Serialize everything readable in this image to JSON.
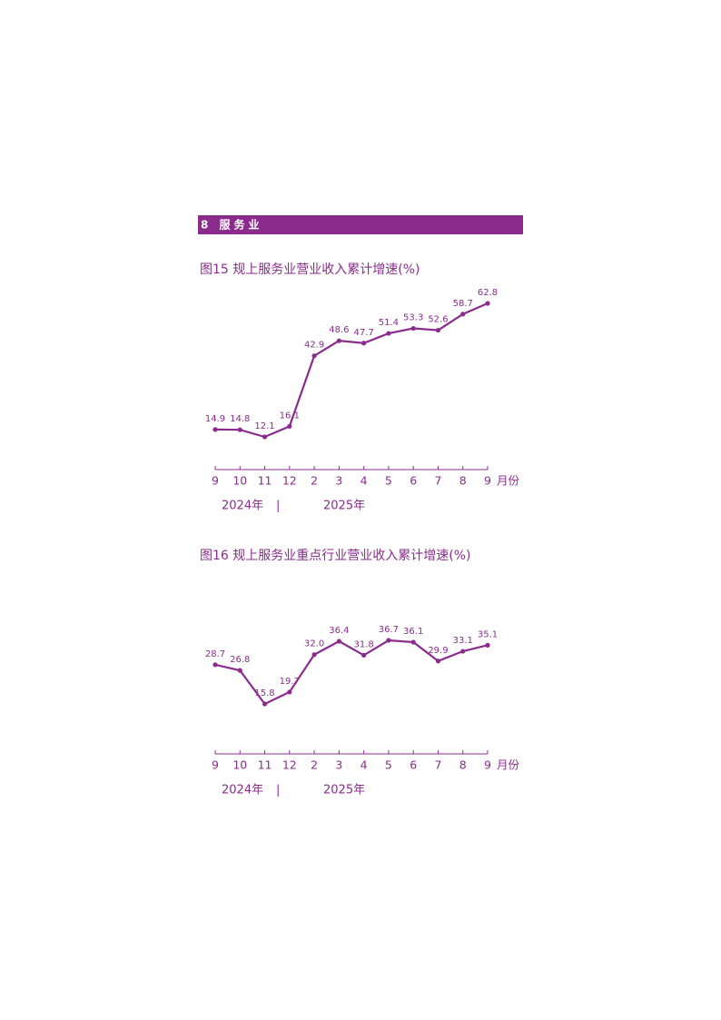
{
  "header": "8 服务业",
  "chart_data": [
    {
      "type": "line",
      "title": "图15  规上服务业营业收入累计增速(%)",
      "categories": [
        "9",
        "10",
        "11",
        "12",
        "2",
        "3",
        "4",
        "5",
        "6",
        "7",
        "8",
        "9"
      ],
      "x_unit": "月份",
      "year_labels": [
        "2024年",
        "|",
        "2025年"
      ],
      "values": [
        14.9,
        14.8,
        12.1,
        16.1,
        42.9,
        48.6,
        47.7,
        51.4,
        53.3,
        52.6,
        58.7,
        62.8
      ],
      "value_labels": [
        "14.9",
        "14.8",
        "12.1",
        "16.1",
        "42.9",
        "48.6",
        "47.7",
        "51.4",
        "53.3",
        "52.6",
        "58.7",
        "62.8"
      ],
      "color": "#8b2c8d"
    },
    {
      "type": "line",
      "title": "图16  规上服务业重点行业营业收入累计增速(%)",
      "categories": [
        "9",
        "10",
        "11",
        "12",
        "2",
        "3",
        "4",
        "5",
        "6",
        "7",
        "8",
        "9"
      ],
      "x_unit": "月份",
      "year_labels": [
        "2024年",
        "|",
        "2025年"
      ],
      "values": [
        28.7,
        26.8,
        15.8,
        19.7,
        32.0,
        36.4,
        31.8,
        36.7,
        36.1,
        29.9,
        33.1,
        35.1
      ],
      "value_labels": [
        "28.7",
        "26.8",
        "15.8",
        "19.7",
        "32.0",
        "36.4",
        "31.8",
        "36.7",
        "36.1",
        "29.9",
        "33.1",
        "35.1"
      ],
      "color": "#8b2c8d"
    }
  ]
}
